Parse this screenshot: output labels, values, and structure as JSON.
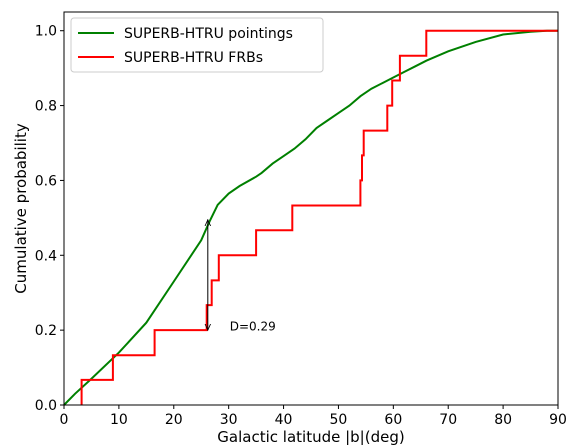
{
  "chart_data": {
    "type": "line",
    "title": "",
    "xlabel": "Galactic latitude |b|(deg)",
    "ylabel": "Cumulative probability",
    "xlim": [
      0,
      90
    ],
    "ylim": [
      0,
      1.05
    ],
    "x_ticks": [
      0,
      10,
      20,
      30,
      40,
      50,
      60,
      70,
      80,
      90
    ],
    "x_tick_labels": [
      "0",
      "10",
      "20",
      "30",
      "40",
      "50",
      "60",
      "70",
      "80",
      "90"
    ],
    "y_ticks": [
      0.0,
      0.2,
      0.4,
      0.6,
      0.8,
      1.0
    ],
    "y_tick_labels": [
      "0.0",
      "0.2",
      "0.4",
      "0.6",
      "0.8",
      "1.0"
    ],
    "grid": false,
    "legend_position": "top-left",
    "series": [
      {
        "name": "SUPERB-HTRU pointings",
        "color": "#008000",
        "style": "line",
        "x": [
          0,
          2,
          5,
          10,
          15,
          20,
          25,
          26.5,
          28,
          30,
          32,
          35,
          36,
          38,
          40,
          42,
          44,
          46,
          48,
          50,
          52,
          54,
          56,
          58,
          60,
          62,
          64,
          66,
          70,
          75,
          80,
          85,
          88,
          90
        ],
        "y": [
          0.0,
          0.03,
          0.07,
          0.14,
          0.22,
          0.33,
          0.44,
          0.49,
          0.535,
          0.565,
          0.585,
          0.61,
          0.62,
          0.645,
          0.665,
          0.685,
          0.71,
          0.74,
          0.76,
          0.78,
          0.8,
          0.825,
          0.845,
          0.86,
          0.875,
          0.89,
          0.905,
          0.92,
          0.945,
          0.97,
          0.99,
          0.997,
          1.0,
          1.0
        ]
      },
      {
        "name": "SUPERB-HTRU FRBs",
        "color": "#ff0000",
        "style": "steps-post",
        "x": [
          3.2,
          8.9,
          16.5,
          26.0,
          26.9,
          28.2,
          35.0,
          41.6,
          54.0,
          54.3,
          54.6,
          58.9,
          59.8,
          60.2,
          61.2,
          66.0,
          90.0
        ],
        "y": [
          0.067,
          0.133,
          0.2,
          0.267,
          0.333,
          0.4,
          0.467,
          0.533,
          0.6,
          0.667,
          0.733,
          0.8,
          0.867,
          0.867,
          0.933,
          1.0,
          1.0
        ]
      }
    ],
    "annotations": [
      {
        "text": "D=0.29",
        "x": 30.2,
        "y": 0.21,
        "arrow_x": 26.2,
        "arrow_y_from": 0.2,
        "arrow_y_to": 0.495
      }
    ]
  }
}
